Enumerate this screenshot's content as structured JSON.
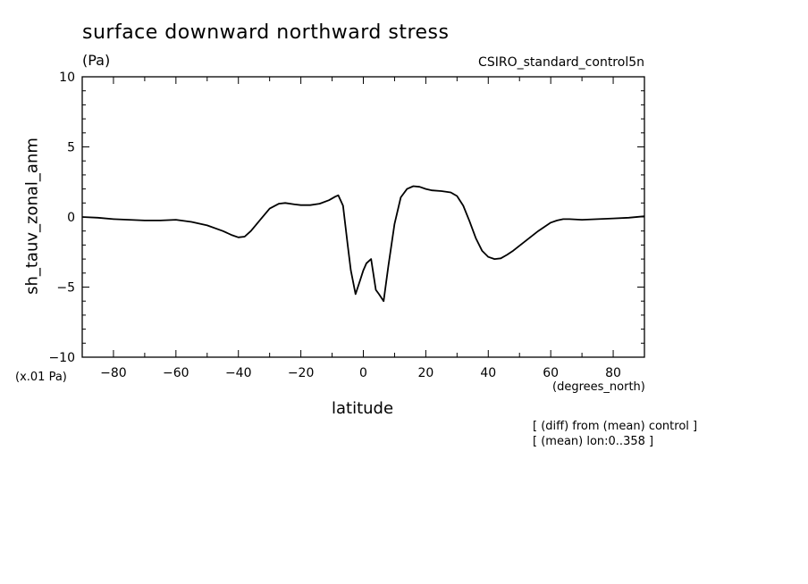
{
  "chart_data": {
    "type": "line",
    "title": "surface downward northward stress",
    "units": "(Pa)",
    "dataset": "CSIRO_standard_control5n",
    "xlabel": "latitude",
    "x_units": "(degrees_north)",
    "ylabel": "sh_tauv_zonal_anm",
    "y_scale_note": "(x.01 Pa)",
    "notes": [
      "[ (diff) from (mean) control ]",
      "[ (mean) lon:0..358 ]"
    ],
    "xlim": [
      -90,
      90
    ],
    "ylim": [
      -10,
      10
    ],
    "x_ticks": [
      -80,
      -60,
      -40,
      -20,
      0,
      20,
      40,
      60,
      80
    ],
    "y_ticks": [
      -10,
      -5,
      0,
      5,
      10
    ],
    "series": [
      {
        "x": [
          -90,
          -85,
          -80,
          -75,
          -70,
          -65,
          -60,
          -55,
          -50,
          -45,
          -42,
          -40,
          -38,
          -36,
          -33,
          -30,
          -27,
          -25,
          -22,
          -20,
          -17,
          -14,
          -11,
          -9,
          -8,
          -6.5,
          -5,
          -4,
          -2.5,
          -1,
          0,
          1,
          2.5,
          4,
          5,
          6.5,
          8,
          10,
          12,
          14,
          16,
          18,
          20,
          22,
          25,
          28,
          30,
          32,
          34,
          36,
          38,
          40,
          42,
          44,
          46,
          48,
          52,
          56,
          60,
          62,
          64,
          66,
          70,
          75,
          80,
          85,
          90
        ],
        "y": [
          0.0,
          -0.05,
          -0.15,
          -0.2,
          -0.25,
          -0.25,
          -0.2,
          -0.35,
          -0.6,
          -1.0,
          -1.3,
          -1.45,
          -1.4,
          -1.0,
          -0.2,
          0.6,
          0.95,
          1.0,
          0.9,
          0.85,
          0.85,
          0.95,
          1.2,
          1.45,
          1.55,
          0.8,
          -2.0,
          -3.8,
          -5.5,
          -4.5,
          -3.8,
          -3.3,
          -3.0,
          -5.2,
          -5.5,
          -6.0,
          -3.5,
          -0.5,
          1.4,
          2.0,
          2.2,
          2.15,
          2.0,
          1.9,
          1.85,
          1.75,
          1.5,
          0.8,
          -0.3,
          -1.5,
          -2.4,
          -2.85,
          -3.0,
          -2.95,
          -2.7,
          -2.4,
          -1.7,
          -1.0,
          -0.4,
          -0.25,
          -0.15,
          -0.15,
          -0.2,
          -0.15,
          -0.1,
          -0.05,
          0.05
        ]
      }
    ]
  }
}
